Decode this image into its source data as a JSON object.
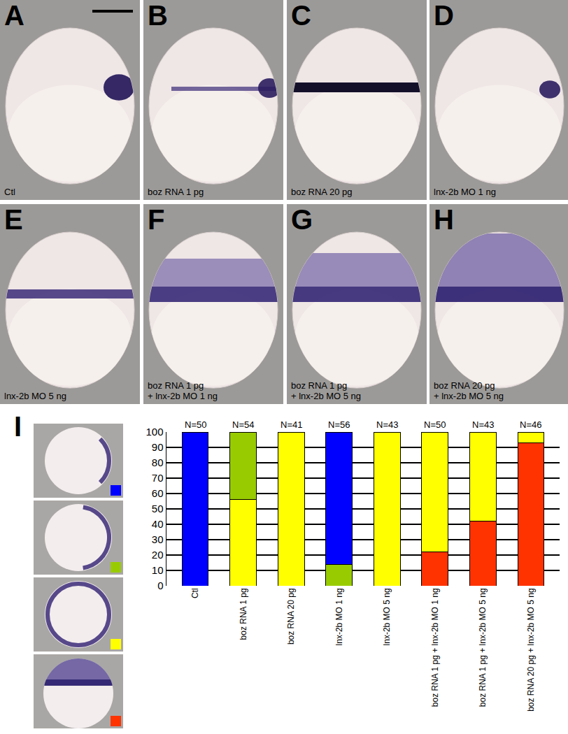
{
  "panels": [
    {
      "label": "A",
      "caption": "Ctl"
    },
    {
      "label": "B",
      "caption": "boz RNA 1 pg"
    },
    {
      "label": "C",
      "caption": "boz RNA 20 pg"
    },
    {
      "label": "D",
      "caption": "lnx-2b MO 1 ng"
    },
    {
      "label": "E",
      "caption": "lnx-2b MO 5 ng"
    },
    {
      "label": "F",
      "caption": "boz RNA 1 pg\n+ lnx-2b MO 1 ng"
    },
    {
      "label": "G",
      "caption": "boz RNA 1 pg\n+ lnx-2b MO 5 ng"
    },
    {
      "label": "H",
      "caption": "boz RNA 20 pg\n+ lnx-2b MO 5 ng"
    }
  ],
  "chart_panel_label": "I",
  "chart_data": {
    "type": "bar",
    "stacked": true,
    "grid": true,
    "categories": [
      "Ctl",
      "boz RNA 1 pg",
      "boz RNA 20 pg",
      "lnx-2b MO 1 ng",
      "lnx-2b MO 5 ng",
      "boz RNA 1 pg + lnx-2b MO 1 ng",
      "boz RNA 1 pg + lnx-2b MO 5 ng",
      "boz RNA 20 pg + lnx-2b MO 5 ng"
    ],
    "annotations": [
      "N=50",
      "N=54",
      "N=41",
      "N=56",
      "N=43",
      "N=50",
      "N=43",
      "N=46"
    ],
    "series": [
      {
        "color": "#ff3300",
        "values": [
          0,
          0,
          0,
          0,
          0,
          22,
          42,
          93
        ]
      },
      {
        "color": "#ffff00",
        "values": [
          0,
          56,
          100,
          0,
          100,
          78,
          58,
          7
        ]
      },
      {
        "color": "#99cc00",
        "values": [
          0,
          44,
          0,
          14,
          0,
          0,
          0,
          0
        ]
      },
      {
        "color": "#0000ff",
        "values": [
          100,
          0,
          0,
          86,
          0,
          0,
          0,
          0
        ]
      }
    ],
    "ylim": [
      0,
      100
    ],
    "yticks": [
      0,
      10,
      20,
      30,
      40,
      50,
      60,
      70,
      80,
      90,
      100
    ]
  }
}
